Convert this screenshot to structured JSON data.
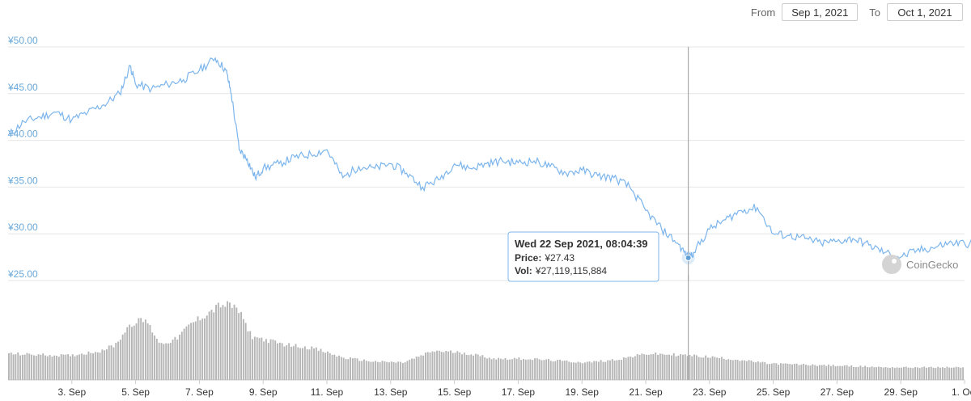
{
  "date_range": {
    "from_label": "From",
    "from_value": "Sep 1, 2021",
    "to_label": "To",
    "to_value": "Oct 1, 2021"
  },
  "watermark": "CoinGecko",
  "colors": {
    "line": "#7cb5ec",
    "volume": "#b5b5b5",
    "grid": "#e6e6e6",
    "axis_labels": "#6aa8d8"
  },
  "tooltip": {
    "title": "Wed 22 Sep 2021, 08:04:39",
    "price_label": "Price:",
    "price_value": "¥27.43",
    "vol_label": "Vol:",
    "vol_value": "¥27,119,115,884"
  },
  "chart_data": {
    "type": "line",
    "title": "",
    "xlabel": "",
    "ylabel": "",
    "ylim": [
      25,
      50
    ],
    "xlim": [
      "2021-09-01",
      "2021-10-01"
    ],
    "y_ticks": [
      "¥25.00",
      "¥30.00",
      "¥35.00",
      "¥40.00",
      "¥45.00",
      "¥50.00"
    ],
    "x_ticks": [
      "3. Sep",
      "5. Sep",
      "7. Sep",
      "9. Sep",
      "11. Sep",
      "13. Sep",
      "15. Sep",
      "17. Sep",
      "19. Sep",
      "21. Sep",
      "23. Sep",
      "25. Sep",
      "27. Sep",
      "29. Sep",
      "1. Oct"
    ],
    "grid": true,
    "legend": "none",
    "hover_point": {
      "x": "2021-09-22 08:04",
      "price": 27.43
    },
    "price_series": {
      "name": "Price",
      "x": [
        "2021-09-01 00:00",
        "2021-09-01 12:00",
        "2021-09-02 00:00",
        "2021-09-02 12:00",
        "2021-09-03 00:00",
        "2021-09-03 12:00",
        "2021-09-04 00:00",
        "2021-09-04 12:00",
        "2021-09-04 20:00",
        "2021-09-05 00:00",
        "2021-09-05 12:00",
        "2021-09-06 00:00",
        "2021-09-06 12:00",
        "2021-09-07 00:00",
        "2021-09-07 12:00",
        "2021-09-07 20:00",
        "2021-09-08 00:00",
        "2021-09-08 06:00",
        "2021-09-08 12:00",
        "2021-09-08 18:00",
        "2021-09-09 00:00",
        "2021-09-09 12:00",
        "2021-09-10 00:00",
        "2021-09-10 12:00",
        "2021-09-11 00:00",
        "2021-09-11 12:00",
        "2021-09-12 00:00",
        "2021-09-12 12:00",
        "2021-09-13 00:00",
        "2021-09-13 12:00",
        "2021-09-14 00:00",
        "2021-09-14 12:00",
        "2021-09-15 00:00",
        "2021-09-15 12:00",
        "2021-09-16 00:00",
        "2021-09-16 12:00",
        "2021-09-17 00:00",
        "2021-09-17 12:00",
        "2021-09-18 00:00",
        "2021-09-18 12:00",
        "2021-09-19 00:00",
        "2021-09-19 12:00",
        "2021-09-20 00:00",
        "2021-09-20 12:00",
        "2021-09-21 00:00",
        "2021-09-21 12:00",
        "2021-09-22 00:00",
        "2021-09-22 08:04",
        "2021-09-22 12:00",
        "2021-09-23 00:00",
        "2021-09-23 12:00",
        "2021-09-24 00:00",
        "2021-09-24 12:00",
        "2021-09-25 00:00",
        "2021-09-25 12:00",
        "2021-09-26 00:00",
        "2021-09-26 12:00",
        "2021-09-27 00:00",
        "2021-09-27 12:00",
        "2021-09-28 00:00",
        "2021-09-28 12:00",
        "2021-09-29 00:00",
        "2021-09-29 12:00",
        "2021-09-30 00:00",
        "2021-09-30 12:00",
        "2021-10-01 00:00",
        "2021-10-01 12:00"
      ],
      "values": [
        40.5,
        42.0,
        42.5,
        43.0,
        42.2,
        43.0,
        43.8,
        45.0,
        48.0,
        46.0,
        45.5,
        46.0,
        46.5,
        47.5,
        48.8,
        47.5,
        45.0,
        39.0,
        38.0,
        36.0,
        37.0,
        37.5,
        38.2,
        38.5,
        39.0,
        36.0,
        37.2,
        37.0,
        37.5,
        36.5,
        35.0,
        35.8,
        37.5,
        37.0,
        37.5,
        37.8,
        37.6,
        37.8,
        37.2,
        36.5,
        36.8,
        36.2,
        36.0,
        35.0,
        32.5,
        30.5,
        29.0,
        27.43,
        28.0,
        30.5,
        31.5,
        32.5,
        32.8,
        30.0,
        29.8,
        29.5,
        29.0,
        29.2,
        29.5,
        28.8,
        28.0,
        27.5,
        28.2,
        28.5,
        29.0,
        29.0,
        28.8
      ]
    },
    "volume_series": {
      "name": "Vol",
      "x": [
        "2021-09-01",
        "2021-09-02",
        "2021-09-03",
        "2021-09-04",
        "2021-09-04 12:00",
        "2021-09-05",
        "2021-09-05 12:00",
        "2021-09-06",
        "2021-09-06 12:00",
        "2021-09-07",
        "2021-09-07 12:00",
        "2021-09-08",
        "2021-09-08 12:00",
        "2021-09-09",
        "2021-09-10",
        "2021-09-11",
        "2021-09-12",
        "2021-09-13",
        "2021-09-14",
        "2021-09-15",
        "2021-09-16",
        "2021-09-17",
        "2021-09-18",
        "2021-09-19",
        "2021-09-20",
        "2021-09-21",
        "2021-09-22",
        "2021-09-23",
        "2021-09-24",
        "2021-09-25",
        "2021-09-26",
        "2021-09-27",
        "2021-09-28",
        "2021-09-29",
        "2021-09-30",
        "2021-10-01"
      ],
      "values": [
        0.27,
        0.26,
        0.25,
        0.3,
        0.36,
        0.58,
        0.62,
        0.37,
        0.42,
        0.58,
        0.68,
        0.78,
        0.75,
        0.45,
        0.37,
        0.33,
        0.23,
        0.19,
        0.18,
        0.3,
        0.28,
        0.22,
        0.22,
        0.2,
        0.18,
        0.21,
        0.27,
        0.26,
        0.24,
        0.21,
        0.17,
        0.16,
        0.15,
        0.14,
        0.13,
        0.13
      ]
    }
  }
}
